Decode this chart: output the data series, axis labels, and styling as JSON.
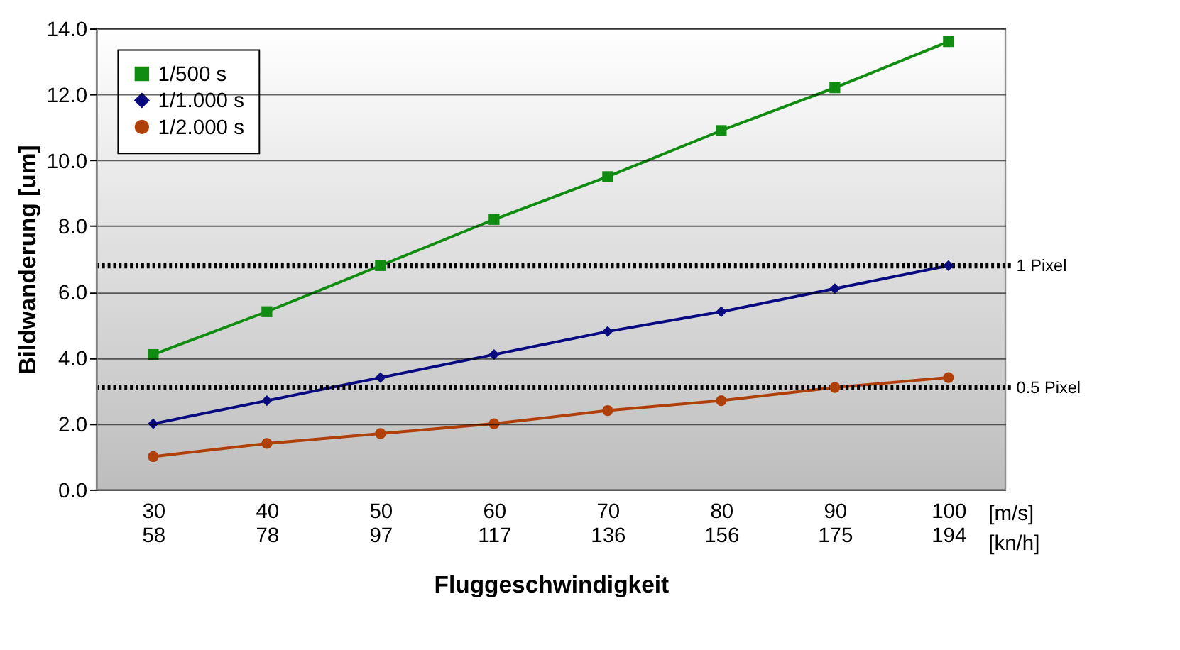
{
  "chart_data": {
    "type": "line",
    "xlabel": "Fluggeschwindigkeit",
    "ylabel": "Bildwanderung [um]",
    "categories": [
      "30\n58",
      "40\n78",
      "50\n97",
      "60\n117",
      "70\n136",
      "80\n156",
      "90\n175",
      "100\n194"
    ],
    "series": [
      {
        "name": "1/500 s",
        "color": "#108c10",
        "marker": "square",
        "values": [
          4.1,
          5.4,
          6.8,
          8.2,
          9.5,
          10.9,
          12.2,
          13.6
        ]
      },
      {
        "name": "1/1.000 s",
        "color": "#0a0a80",
        "marker": "diamond",
        "values": [
          2.0,
          2.7,
          3.4,
          4.1,
          4.8,
          5.4,
          6.1,
          6.8
        ]
      },
      {
        "name": "1/2.000 s",
        "color": "#b0400a",
        "marker": "circle",
        "values": [
          1.0,
          1.4,
          1.7,
          2.0,
          2.4,
          2.7,
          3.1,
          3.4
        ]
      }
    ],
    "ylim": [
      0,
      14
    ],
    "yticks": [
      {
        "value": 0,
        "label": "0.0"
      },
      {
        "value": 2,
        "label": "2.0"
      },
      {
        "value": 4,
        "label": "4.0"
      },
      {
        "value": 6,
        "label": "6.0"
      },
      {
        "value": 8,
        "label": "8.0"
      },
      {
        "value": 10,
        "label": "10.0"
      },
      {
        "value": 12,
        "label": "12.0"
      },
      {
        "value": 14,
        "label": "14.0"
      }
    ],
    "ref_lines": [
      {
        "axis": "y",
        "value": 6.8,
        "label": "1 Pixel",
        "color": "#000000",
        "line_style": "dotted"
      },
      {
        "axis": "y",
        "value": 3.1,
        "label": "0.5 Pixel",
        "color": "#000000",
        "line_style": "dotted"
      }
    ],
    "annotations": [
      "[m/s]\n[kn/h]"
    ],
    "grid": "y",
    "legend": "top left"
  }
}
